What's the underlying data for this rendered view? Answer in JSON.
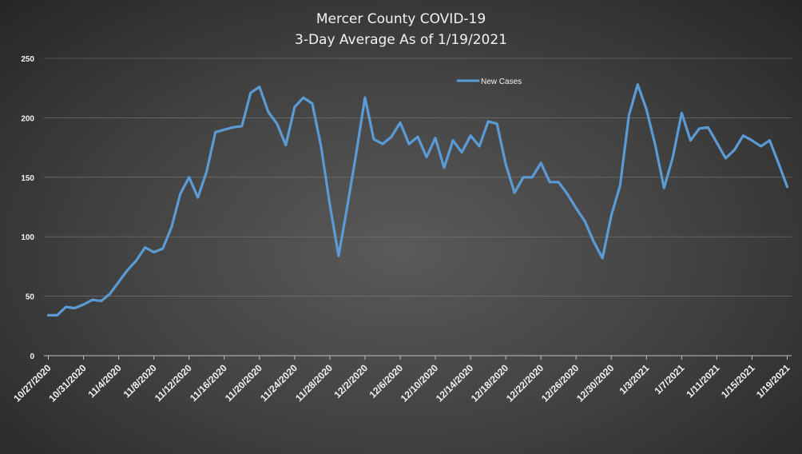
{
  "chart_data": {
    "type": "line",
    "title": "Mercer County COVID-19",
    "subtitle": "3-Day Average As of 1/19/2021",
    "xlabel": "",
    "ylabel": "",
    "ylim": [
      0,
      250
    ],
    "yticks": [
      0,
      50,
      100,
      150,
      200,
      250
    ],
    "grid": true,
    "legend": "top-center",
    "x_start": "10/27/2020",
    "x_end": "1/19/2021",
    "xtick_labels": [
      "10/27/2020",
      "10/31/2020",
      "11/4/2020",
      "11/8/2020",
      "11/12/2020",
      "11/16/2020",
      "11/20/2020",
      "11/24/2020",
      "11/28/2020",
      "12/2/2020",
      "12/6/2020",
      "12/10/2020",
      "12/14/2020",
      "12/18/2020",
      "12/22/2020",
      "12/26/2020",
      "12/30/2020",
      "1/3/2021",
      "1/7/2021",
      "1/11/2021",
      "1/15/2021",
      "1/19/2021"
    ],
    "series": [
      {
        "name": "New Cases",
        "color": "#5b9bd5",
        "values": [
          34,
          34,
          41,
          40,
          43,
          47,
          46,
          52,
          62,
          72,
          80,
          91,
          87,
          90,
          108,
          136,
          150,
          133,
          155,
          188,
          190,
          192,
          193,
          221,
          226,
          205,
          195,
          177,
          209,
          217,
          212,
          176,
          127,
          84,
          126,
          170,
          217,
          182,
          178,
          184,
          196,
          178,
          184,
          167,
          183,
          158,
          181,
          171,
          185,
          176,
          197,
          195,
          161,
          137,
          150,
          150,
          162,
          146,
          146,
          136,
          124,
          113,
          96,
          82,
          118,
          143,
          202,
          228,
          207,
          177,
          141,
          167,
          204,
          181,
          191,
          192,
          179,
          166,
          173,
          185,
          181,
          176,
          181,
          162,
          142
        ]
      }
    ]
  }
}
